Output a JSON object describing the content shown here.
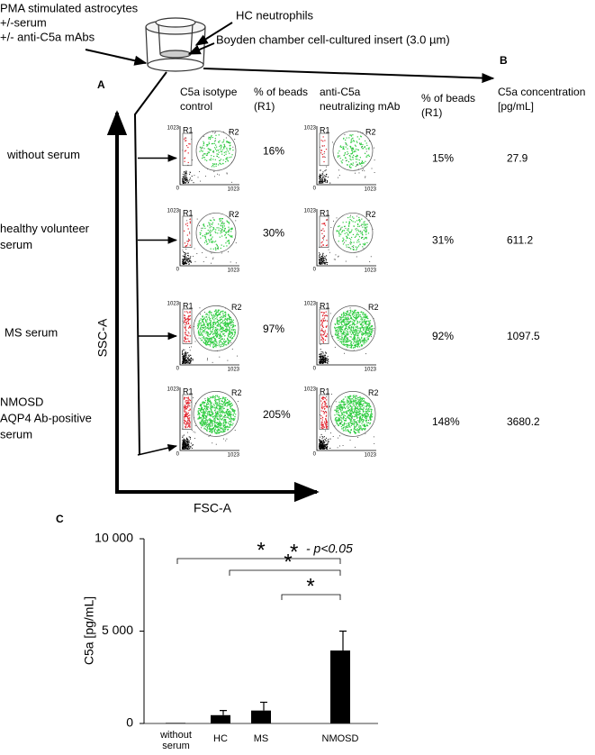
{
  "header": {
    "left_lines": [
      "PMA stimulated astrocytes",
      "+/-serum",
      "+/- anti-C5a mAbs"
    ],
    "neutrophils": "HC neutrophils",
    "insert": "Boyden chamber cell-cultured insert (3.0 µm)"
  },
  "panel_a": {
    "label": "A",
    "columns": [
      [
        "C5a isotype",
        "control"
      ],
      [
        "% of beads",
        "(R1)"
      ],
      [
        "anti-C5a",
        "neutralizing mAb"
      ],
      [
        "% of beads",
        "(R1)"
      ]
    ],
    "rows": [
      {
        "label": [
          "without serum"
        ],
        "isotype": "16%",
        "neutralizing": "15%"
      },
      {
        "label": [
          "healthy volunteer",
          "serum"
        ],
        "isotype": "30%",
        "neutralizing": "31%"
      },
      {
        "label": [
          "MS serum"
        ],
        "isotype": "97%",
        "neutralizing": "92%"
      },
      {
        "label": [
          "NMOSD",
          "AQP4 Ab-positive",
          "serum"
        ],
        "isotype": "205%",
        "neutralizing": "148%"
      }
    ],
    "gates": [
      "R1",
      "R2"
    ],
    "axis_max": "1023",
    "axis_min": "0",
    "y_label": "SSC-A",
    "x_label": "FSC-A"
  },
  "panel_b": {
    "label": "B",
    "header": [
      "C5a concentration",
      "[pg/mL]"
    ],
    "values": [
      "27.9",
      "611.2",
      "1097.5",
      "3680.2"
    ]
  },
  "chart_data": {
    "type": "bar",
    "panel_label": "C",
    "y_label": "C5a [pg/mL]",
    "categories": [
      "without serum",
      "HC",
      "MS",
      "NMOSD"
    ],
    "values": [
      30,
      450,
      700,
      3950
    ],
    "errors": [
      0,
      250,
      450,
      1050
    ],
    "color": "#000000",
    "ylim": [
      0,
      10000
    ],
    "yticks": [
      0,
      {
        "value": 5000,
        "label": "5 000"
      },
      {
        "value": 10000,
        "label": "10 000"
      }
    ],
    "annotations": [
      "*",
      "*",
      "*"
    ],
    "legend": {
      "symbol": "*",
      "text": "- p<0.05"
    }
  }
}
